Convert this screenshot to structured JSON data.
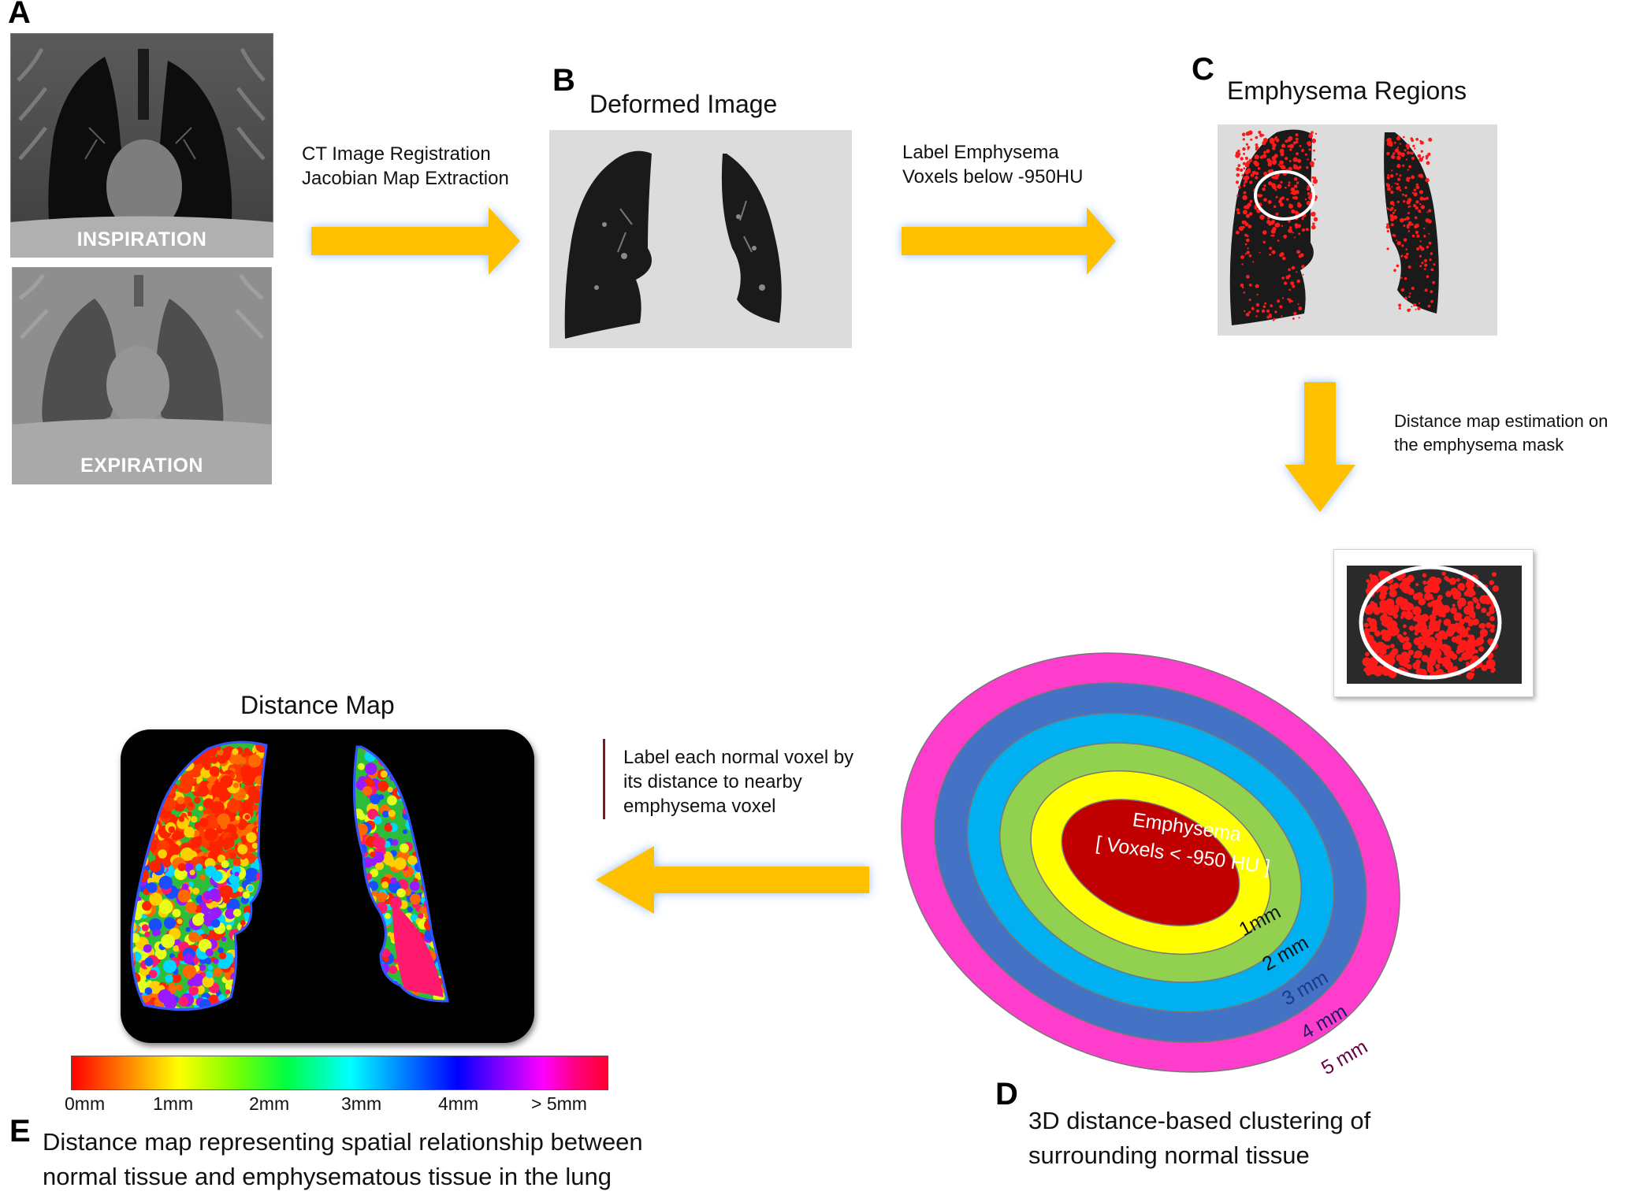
{
  "panels": {
    "a": {
      "letter": "A",
      "inspiration_label": "INSPIRATION",
      "expiration_label": "EXPIRATION"
    },
    "b": {
      "letter": "B",
      "title": "Deformed Image",
      "arrow_in_line1": "CT Image Registration",
      "arrow_in_line2": "Jacobian Map Extraction"
    },
    "c": {
      "letter": "C",
      "title": "Emphysema Regions",
      "arrow_in_line1": "Label Emphysema",
      "arrow_in_line2": "Voxels below -950HU"
    },
    "d": {
      "letter": "D",
      "arrow_in_line1": "Distance map estimation on",
      "arrow_in_line2": "the emphysema mask",
      "center_line1": "Emphysema",
      "center_line2": "[ Voxels < -950 HU ]",
      "rings": [
        {
          "label": "1mm",
          "color": "#ffff00"
        },
        {
          "label": "2 mm",
          "color": "#92d050"
        },
        {
          "label": "3 mm",
          "color": "#00b0f0"
        },
        {
          "label": "4 mm",
          "color": "#4472c4"
        },
        {
          "label": "5 mm",
          "color": "#ff3dcc"
        }
      ],
      "center_color": "#c00000",
      "caption_line1": "3D distance-based clustering of",
      "caption_line2": "surrounding normal tissue"
    },
    "e": {
      "letter": "E",
      "title": "Distance Map",
      "arrow_in_line1": "Label each normal voxel by",
      "arrow_in_line2": "its distance to nearby",
      "arrow_in_line3": "emphysema voxel",
      "colorbar_ticks": [
        "0mm",
        "1mm",
        "2mm",
        "3mm",
        "4mm",
        "> 5mm"
      ],
      "caption_line1": "Distance map representing spatial relationship between",
      "caption_line2": "normal tissue and emphysematous tissue in the lung"
    }
  },
  "colors": {
    "arrow_fill": "#ffc000",
    "arrow_glow": "#9dc3e6",
    "emphysema_red": "#ff0000"
  }
}
